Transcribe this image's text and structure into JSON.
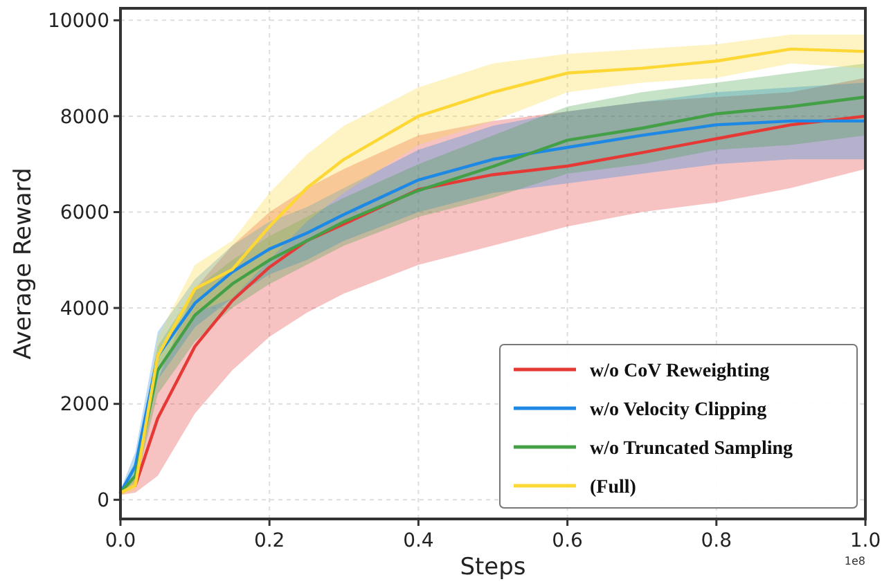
{
  "chart_data": {
    "type": "line",
    "xlabel": "Steps",
    "ylabel": "Average Reward",
    "x": [
      0,
      0.02,
      0.05,
      0.1,
      0.15,
      0.2,
      0.25,
      0.3,
      0.4,
      0.5,
      0.6,
      0.7,
      0.8,
      0.9,
      1.0
    ],
    "xlim": [
      0,
      1
    ],
    "xticks": [
      {
        "value": 0,
        "label": "0.0"
      },
      0.2,
      0.4,
      0.6,
      0.8,
      {
        "value": 1,
        "label": "1.0"
      }
    ],
    "ylim": [
      -400,
      10250
    ],
    "yticks": [
      0,
      2000,
      4000,
      6000,
      8000,
      10000
    ],
    "grid": true,
    "legend": "bottom right",
    "line_style": "solid",
    "marker": "none",
    "annotations": [
      "1e8"
    ],
    "series": [
      {
        "name": "w/o CoV Reweighting",
        "color": "#e53935",
        "values": [
          null,
          300,
          1700,
          3200,
          4150,
          4850,
          5400,
          5750,
          6470,
          6780,
          6960,
          7240,
          7530,
          7820,
          8000
        ],
        "lower": [
          100,
          150,
          500,
          1800,
          2700,
          3400,
          3900,
          4300,
          4900,
          5300,
          5700,
          6000,
          6200,
          6500,
          6900
        ],
        "upper": [
          200,
          500,
          2500,
          4400,
          5300,
          6000,
          6500,
          6900,
          7600,
          7900,
          8100,
          8300,
          8400,
          8500,
          8800
        ]
      },
      {
        "name": "w/o Velocity Clipping",
        "color": "#1e88e5",
        "values": [
          150,
          700,
          3000,
          4100,
          4750,
          5230,
          5560,
          5950,
          6670,
          7100,
          7350,
          7600,
          7820,
          7900,
          7900
        ],
        "lower": [
          100,
          400,
          2500,
          3600,
          4200,
          4700,
          5000,
          5400,
          6000,
          6400,
          6600,
          6800,
          7000,
          7100,
          7100
        ],
        "upper": [
          200,
          1000,
          3500,
          4600,
          5300,
          5800,
          6100,
          6500,
          7300,
          7800,
          8100,
          8300,
          8500,
          8600,
          8700
        ]
      },
      {
        "name": "w/o Truncated Sampling",
        "color": "#43a047",
        "values": [
          150,
          500,
          2700,
          3850,
          4500,
          5000,
          5400,
          5800,
          6450,
          6950,
          7500,
          7750,
          8050,
          8200,
          8400
        ],
        "lower": [
          100,
          300,
          2200,
          3300,
          4000,
          4500,
          4900,
          5300,
          5900,
          6300,
          6800,
          7000,
          7300,
          7400,
          7600
        ],
        "upper": [
          200,
          800,
          3200,
          4400,
          5000,
          5500,
          5900,
          6300,
          7000,
          7600,
          8200,
          8500,
          8700,
          8900,
          9100
        ]
      },
      {
        "name": "(Full)",
        "color": "#fdd835",
        "values": [
          150,
          300,
          3000,
          4400,
          4800,
          5700,
          6500,
          7100,
          8000,
          8500,
          8900,
          9000,
          9150,
          9400,
          9350
        ],
        "lower": [
          100,
          200,
          2600,
          3900,
          4200,
          5000,
          5800,
          6400,
          7400,
          7900,
          8500,
          8700,
          8800,
          9100,
          9000
        ],
        "upper": [
          200,
          500,
          3400,
          4900,
          5400,
          6400,
          7200,
          7800,
          8600,
          9100,
          9300,
          9400,
          9500,
          9700,
          9700
        ]
      }
    ]
  }
}
